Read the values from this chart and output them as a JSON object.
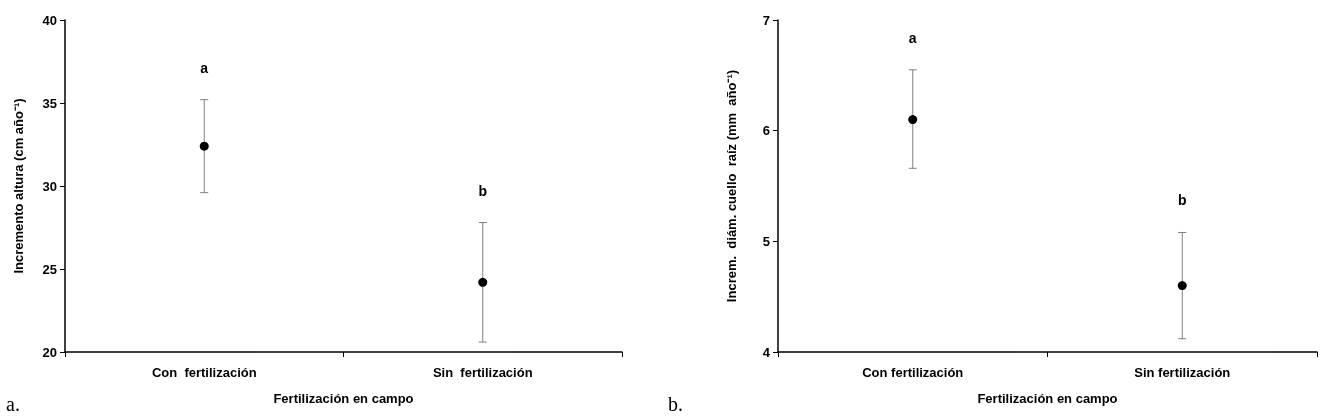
{
  "chart_data": [
    {
      "type": "scatter",
      "categories": [
        "Con  fertilización",
        "Sin  fertilización"
      ],
      "xlabel": "Fertilización en campo",
      "ylabel": "Incremento altura (cm año⁻¹)",
      "series": [
        {
          "color": "#000000",
          "values": [
            32.4,
            24.2
          ],
          "errors": [
            [
              29.6,
              35.2
            ],
            [
              20.6,
              27.8
            ]
          ]
        }
      ],
      "ylim": [
        20,
        40
      ],
      "yticks": [
        20,
        25,
        30,
        35,
        40
      ],
      "grid": false,
      "marker": "circle",
      "annotations": [
        "a",
        "b",
        "a."
      ]
    },
    {
      "type": "scatter",
      "categories": [
        "Con fertilización",
        "Sin fertilización"
      ],
      "xlabel": "Fertilización en campo",
      "ylabel": "Increm.  diám. cuello  raíz (mm  año⁻¹)",
      "series": [
        {
          "color": "#000000",
          "values": [
            6.1,
            4.6
          ],
          "errors": [
            [
              5.66,
              6.55
            ],
            [
              4.12,
              5.08
            ]
          ]
        }
      ],
      "ylim": [
        4,
        7
      ],
      "yticks": [
        4,
        5,
        6,
        7
      ],
      "grid": false,
      "marker": "circle",
      "annotations": [
        "a",
        "b",
        "b."
      ]
    }
  ]
}
